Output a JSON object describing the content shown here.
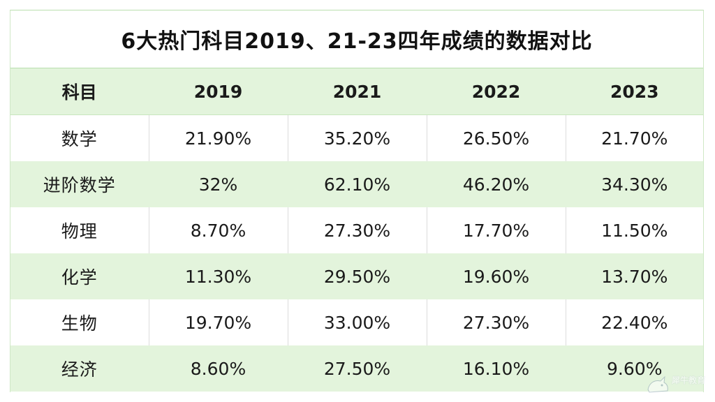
{
  "title": "6大热门科目2019、21-23四年成绩的数据对比",
  "headers": [
    "科目",
    "2019",
    "2021",
    "2022",
    "2023"
  ],
  "rows": [
    [
      "数学",
      "21.90%",
      "35.20%",
      "26.50%",
      "21.70%"
    ],
    [
      "进阶数学",
      "32%",
      "62.10%",
      "46.20%",
      "34.30%"
    ],
    [
      "物理",
      "8.70%",
      "27.30%",
      "17.70%",
      "11.50%"
    ],
    [
      "化学",
      "11.30%",
      "29.50%",
      "19.60%",
      "13.70%"
    ],
    [
      "生物",
      "19.70%",
      "33.00%",
      "27.30%",
      "22.40%"
    ],
    [
      "经济",
      "8.60%",
      "27.50%",
      "16.10%",
      "9.60%"
    ]
  ],
  "watermark": {
    "text": "犀牛教育"
  },
  "colors": {
    "band": "#e3f4dc",
    "border": "#b9dfae",
    "text": "#1a1a1a"
  }
}
